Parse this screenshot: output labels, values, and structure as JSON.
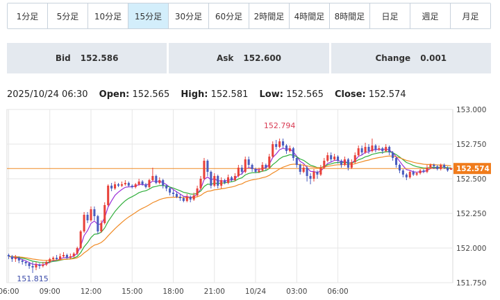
{
  "tabs": [
    {
      "label": "1分足",
      "active": false
    },
    {
      "label": "5分足",
      "active": false
    },
    {
      "label": "10分足",
      "active": false
    },
    {
      "label": "15分足",
      "active": true
    },
    {
      "label": "30分足",
      "active": false
    },
    {
      "label": "60分足",
      "active": false
    },
    {
      "label": "2時間足",
      "active": false
    },
    {
      "label": "4時間足",
      "active": false
    },
    {
      "label": "8時間足",
      "active": false
    },
    {
      "label": "日足",
      "active": false
    },
    {
      "label": "週足",
      "active": false
    },
    {
      "label": "月足",
      "active": false
    }
  ],
  "quotes": {
    "bid_label": "Bid",
    "bid": "152.586",
    "ask_label": "Ask",
    "ask": "152.600",
    "change_label": "Change",
    "change": "0.001"
  },
  "ohlc": {
    "datetime": "2025/10/24 06:30",
    "open_label": "Open:",
    "open": "152.565",
    "high_label": "High:",
    "high": "152.581",
    "low_label": "Low:",
    "low": "152.565",
    "close_label": "Close:",
    "close": "152.574"
  },
  "colors": {
    "up": "#e8413a",
    "down": "#4a5dbf",
    "ma_short": "#9b30d9",
    "ma_mid": "#2fae3a",
    "ma_long": "#f08a24",
    "price_line": "#f08a24",
    "price_tag": "#f07c1c",
    "max_label": "#d83a52",
    "min_label": "#3a4aa8",
    "grid": "#e6e6e6",
    "axis_text": "#444"
  },
  "chart_data": {
    "type": "candlestick",
    "ylim": [
      151.75,
      153.0
    ],
    "y_ticks": [
      "153.000",
      "152.750",
      "152.500",
      "152.250",
      "152.000",
      "151.750"
    ],
    "x_ticks": [
      "06:00",
      "09:00",
      "12:00",
      "15:00",
      "18:00",
      "21:00",
      "10/24",
      "03:00",
      "06:00"
    ],
    "current_price": 152.574,
    "current_price_label": "152.574",
    "max_label": "152.794",
    "max_value": 152.794,
    "min_label": "151.815",
    "min_value": 151.815,
    "candles": [
      [
        151.95,
        151.94,
        151.96,
        151.92
      ],
      [
        151.94,
        151.92,
        151.95,
        151.9
      ],
      [
        151.92,
        151.93,
        151.95,
        151.9
      ],
      [
        151.93,
        151.91,
        151.94,
        151.89
      ],
      [
        151.91,
        151.9,
        151.92,
        151.88
      ],
      [
        151.9,
        151.89,
        151.91,
        151.87
      ],
      [
        151.89,
        151.87,
        151.9,
        151.85
      ],
      [
        151.87,
        151.86,
        151.9,
        151.82
      ],
      [
        151.86,
        151.88,
        151.9,
        151.84
      ],
      [
        151.88,
        151.87,
        151.89,
        151.85
      ],
      [
        151.87,
        151.88,
        151.9,
        151.86
      ],
      [
        151.88,
        151.9,
        151.91,
        151.87
      ],
      [
        151.9,
        151.92,
        151.93,
        151.89
      ],
      [
        151.92,
        151.93,
        151.94,
        151.91
      ],
      [
        151.93,
        151.92,
        151.95,
        151.91
      ],
      [
        151.92,
        151.94,
        151.96,
        151.91
      ],
      [
        151.94,
        151.95,
        151.97,
        151.93
      ],
      [
        151.95,
        151.93,
        151.96,
        151.92
      ],
      [
        151.93,
        151.94,
        151.96,
        151.92
      ],
      [
        151.94,
        151.96,
        151.97,
        151.93
      ],
      [
        151.96,
        152.0,
        152.01,
        151.95
      ],
      [
        152.0,
        152.12,
        152.13,
        151.99
      ],
      [
        152.12,
        152.24,
        152.26,
        152.11
      ],
      [
        152.24,
        152.2,
        152.26,
        152.18
      ],
      [
        152.2,
        152.28,
        152.3,
        152.19
      ],
      [
        152.28,
        152.23,
        152.3,
        152.2
      ],
      [
        152.23,
        152.12,
        152.24,
        152.1
      ],
      [
        152.12,
        152.18,
        152.2,
        152.11
      ],
      [
        152.18,
        152.31,
        152.33,
        152.17
      ],
      [
        152.31,
        152.45,
        152.46,
        152.3
      ],
      [
        152.45,
        152.43,
        152.47,
        152.41
      ],
      [
        152.43,
        152.46,
        152.48,
        152.42
      ],
      [
        152.46,
        152.45,
        152.47,
        152.44
      ],
      [
        152.45,
        152.46,
        152.48,
        152.44
      ],
      [
        152.46,
        152.47,
        152.49,
        152.45
      ],
      [
        152.47,
        152.45,
        152.48,
        152.44
      ],
      [
        152.45,
        152.44,
        152.46,
        152.43
      ],
      [
        152.44,
        152.46,
        152.47,
        152.43
      ],
      [
        152.46,
        152.48,
        152.5,
        152.45
      ],
      [
        152.48,
        152.46,
        152.49,
        152.45
      ],
      [
        152.46,
        152.44,
        152.47,
        152.43
      ],
      [
        152.44,
        152.49,
        152.5,
        152.43
      ],
      [
        152.49,
        152.52,
        152.58,
        152.48
      ],
      [
        152.52,
        152.47,
        152.53,
        152.46
      ],
      [
        152.47,
        152.49,
        152.51,
        152.46
      ],
      [
        152.49,
        152.45,
        152.5,
        152.43
      ],
      [
        152.45,
        152.43,
        152.46,
        152.41
      ],
      [
        152.43,
        152.4,
        152.44,
        152.38
      ],
      [
        152.4,
        152.39,
        152.42,
        152.37
      ],
      [
        152.39,
        152.37,
        152.41,
        152.36
      ],
      [
        152.37,
        152.36,
        152.39,
        152.34
      ],
      [
        152.36,
        152.34,
        152.37,
        152.33
      ],
      [
        152.34,
        152.37,
        152.39,
        152.33
      ],
      [
        152.37,
        152.35,
        152.38,
        152.33
      ],
      [
        152.35,
        152.38,
        152.4,
        152.34
      ],
      [
        152.38,
        152.43,
        152.45,
        152.37
      ],
      [
        152.43,
        152.5,
        152.52,
        152.42
      ],
      [
        152.5,
        152.63,
        152.65,
        152.49
      ],
      [
        152.63,
        152.55,
        152.64,
        152.52
      ],
      [
        152.55,
        152.45,
        152.56,
        152.43
      ],
      [
        152.45,
        152.52,
        152.54,
        152.44
      ],
      [
        152.52,
        152.45,
        152.53,
        152.43
      ],
      [
        152.45,
        152.49,
        152.51,
        152.43
      ],
      [
        152.49,
        152.47,
        152.5,
        152.46
      ],
      [
        152.47,
        152.51,
        152.53,
        152.46
      ],
      [
        152.51,
        152.49,
        152.52,
        152.48
      ],
      [
        152.49,
        152.52,
        152.54,
        152.48
      ],
      [
        152.52,
        152.58,
        152.6,
        152.51
      ],
      [
        152.58,
        152.55,
        152.6,
        152.53
      ],
      [
        152.55,
        152.64,
        152.66,
        152.54
      ],
      [
        152.64,
        152.6,
        152.66,
        152.58
      ],
      [
        152.6,
        152.57,
        152.61,
        152.55
      ],
      [
        152.57,
        152.55,
        152.58,
        152.54
      ],
      [
        152.55,
        152.56,
        152.58,
        152.54
      ],
      [
        152.56,
        152.6,
        152.62,
        152.55
      ],
      [
        152.6,
        152.58,
        152.61,
        152.56
      ],
      [
        152.58,
        152.66,
        152.68,
        152.57
      ],
      [
        152.66,
        152.75,
        152.77,
        152.65
      ],
      [
        152.75,
        152.73,
        152.78,
        152.71
      ],
      [
        152.73,
        152.77,
        152.79,
        152.72
      ],
      [
        152.77,
        152.74,
        152.79,
        152.72
      ],
      [
        152.74,
        152.7,
        152.75,
        152.68
      ],
      [
        152.7,
        152.72,
        152.74,
        152.69
      ],
      [
        152.72,
        152.65,
        152.73,
        152.63
      ],
      [
        152.65,
        152.6,
        152.66,
        152.58
      ],
      [
        152.6,
        152.55,
        152.61,
        152.53
      ],
      [
        152.55,
        152.58,
        152.6,
        152.54
      ],
      [
        152.58,
        152.52,
        152.59,
        152.48
      ],
      [
        152.52,
        152.5,
        152.54,
        152.46
      ],
      [
        152.5,
        152.55,
        152.57,
        152.48
      ],
      [
        152.55,
        152.53,
        152.56,
        152.5
      ],
      [
        152.53,
        152.58,
        152.6,
        152.52
      ],
      [
        152.58,
        152.63,
        152.65,
        152.57
      ],
      [
        152.63,
        152.67,
        152.69,
        152.62
      ],
      [
        152.67,
        152.64,
        152.69,
        152.62
      ],
      [
        152.64,
        152.66,
        152.68,
        152.63
      ],
      [
        152.66,
        152.63,
        152.67,
        152.61
      ],
      [
        152.63,
        152.6,
        152.64,
        152.58
      ],
      [
        152.6,
        152.64,
        152.66,
        152.59
      ],
      [
        152.64,
        152.58,
        152.65,
        152.56
      ],
      [
        152.58,
        152.62,
        152.64,
        152.57
      ],
      [
        152.62,
        152.67,
        152.69,
        152.61
      ],
      [
        152.67,
        152.72,
        152.74,
        152.66
      ],
      [
        152.72,
        152.69,
        152.74,
        152.67
      ],
      [
        152.69,
        152.73,
        152.76,
        152.68
      ],
      [
        152.73,
        152.7,
        152.75,
        152.68
      ],
      [
        152.7,
        152.74,
        152.79,
        152.69
      ],
      [
        152.74,
        152.71,
        152.75,
        152.69
      ],
      [
        152.71,
        152.72,
        152.74,
        152.7
      ],
      [
        152.72,
        152.7,
        152.73,
        152.68
      ],
      [
        152.7,
        152.73,
        152.75,
        152.69
      ],
      [
        152.73,
        152.69,
        152.74,
        152.67
      ],
      [
        152.69,
        152.65,
        152.7,
        152.63
      ],
      [
        152.65,
        152.6,
        152.66,
        152.58
      ],
      [
        152.6,
        152.56,
        152.61,
        152.54
      ],
      [
        152.56,
        152.53,
        152.57,
        152.51
      ],
      [
        152.53,
        152.51,
        152.54,
        152.49
      ],
      [
        152.51,
        152.55,
        152.56,
        152.5
      ],
      [
        152.55,
        152.53,
        152.56,
        152.52
      ],
      [
        152.53,
        152.54,
        152.55,
        152.52
      ],
      [
        152.54,
        152.56,
        152.57,
        152.53
      ],
      [
        152.56,
        152.55,
        152.57,
        152.54
      ],
      [
        152.55,
        152.58,
        152.6,
        152.54
      ],
      [
        152.58,
        152.6,
        152.61,
        152.57
      ],
      [
        152.6,
        152.59,
        152.61,
        152.57
      ],
      [
        152.59,
        152.57,
        152.6,
        152.56
      ],
      [
        152.57,
        152.6,
        152.61,
        152.56
      ],
      [
        152.6,
        152.58,
        152.61,
        152.57
      ],
      [
        152.58,
        152.56,
        152.59,
        152.55
      ],
      [
        152.565,
        152.574,
        152.581,
        152.565
      ]
    ]
  }
}
